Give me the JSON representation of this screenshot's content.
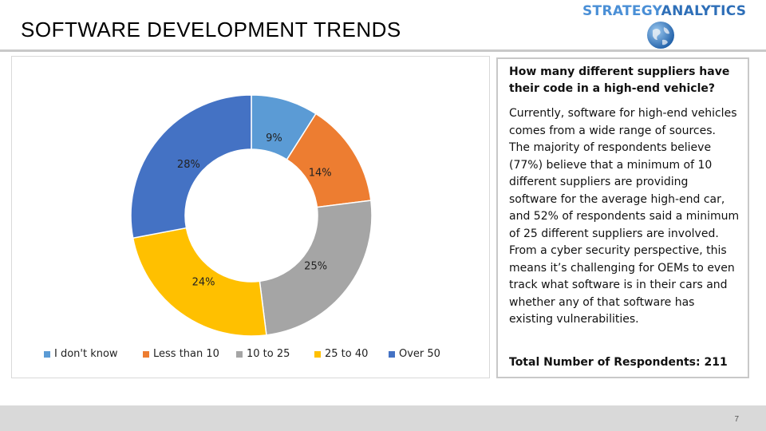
{
  "header": {
    "title": "SOFTWARE DEVELOPMENT TRENDS",
    "brand_left": "STRATEGY",
    "brand_right": "ANALYTICS"
  },
  "chart_data": {
    "type": "pie",
    "subtype": "donut",
    "categories": [
      "I don't know",
      "Less than 10",
      "10 to 25",
      "25 to 40",
      "Over 50"
    ],
    "values": [
      9,
      14,
      25,
      24,
      28
    ],
    "labels": [
      "9%",
      "14%",
      "25%",
      "24%",
      "28%"
    ],
    "colors": [
      "#5b9bd5",
      "#ed7d31",
      "#a5a5a5",
      "#ffc000",
      "#4472c4"
    ],
    "legend_position": "bottom"
  },
  "side": {
    "question": "How many different suppliers have their code in a high-end vehicle?",
    "body": "Currently, software for high-end vehicles comes from a wide range of sources. The majority of respondents believe (77%) believe that a minimum of 10 different suppliers are providing software for the average high-end car, and 52% of respondents said a minimum of 25 different suppliers are involved. From a cyber security perspective, this means it’s challenging for OEMs to even track what software is in their cars and whether any of that software has existing vulnerabilities.",
    "total": "Total Number of Respondents: 211"
  },
  "footer": {
    "page_number": "7"
  }
}
